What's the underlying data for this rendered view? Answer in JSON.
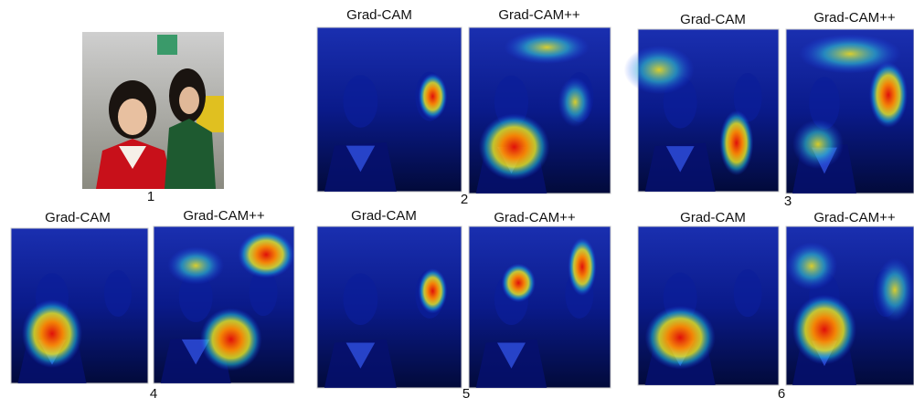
{
  "panels": [
    {
      "label": "1"
    },
    {
      "label": "2",
      "left_title": "Grad-CAM",
      "right_title": "Grad-CAM++"
    },
    {
      "label": "3",
      "left_title": "Grad-CAM",
      "right_title": "Grad-CAM++"
    },
    {
      "label": "4",
      "left_title": "Grad-CAM",
      "right_title": "Grad-CAM++"
    },
    {
      "label": "5",
      "left_title": "Grad-CAM",
      "right_title": "Grad-CAM++"
    },
    {
      "label": "6",
      "left_title": "Grad-CAM",
      "right_title": "Grad-CAM++"
    }
  ]
}
